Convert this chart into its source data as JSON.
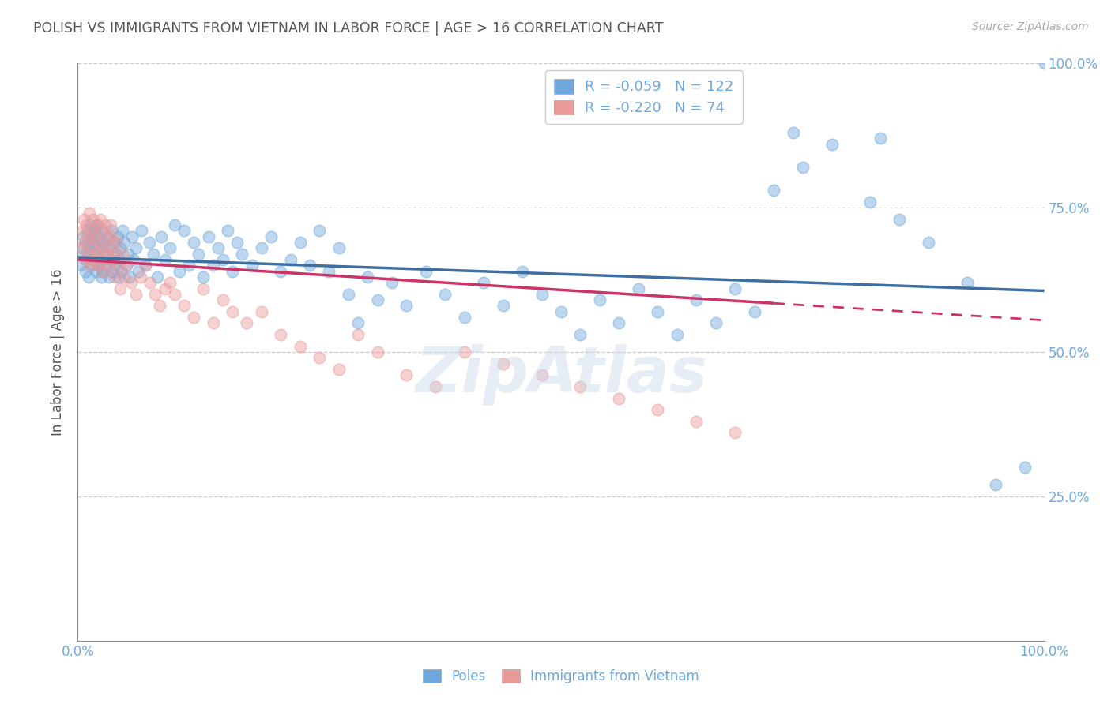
{
  "title": "POLISH VS IMMIGRANTS FROM VIETNAM IN LABOR FORCE | AGE > 16 CORRELATION CHART",
  "source": "Source: ZipAtlas.com",
  "ylabel": "In Labor Force | Age > 16",
  "legend_labels": [
    "Poles",
    "Immigrants from Vietnam"
  ],
  "legend_r": [
    -0.059,
    -0.22
  ],
  "legend_n": [
    122,
    74
  ],
  "blue_color": "#6fa8dc",
  "pink_color": "#ea9999",
  "blue_line_color": "#3d6fa3",
  "pink_line_color": "#cc3366",
  "title_color": "#555555",
  "axis_label_color": "#6fa8dc",
  "watermark": "ZipAtlas",
  "blue_scatter_x": [
    0.003,
    0.005,
    0.006,
    0.007,
    0.008,
    0.009,
    0.01,
    0.01,
    0.011,
    0.012,
    0.013,
    0.014,
    0.015,
    0.015,
    0.016,
    0.017,
    0.018,
    0.019,
    0.02,
    0.02,
    0.021,
    0.022,
    0.023,
    0.024,
    0.025,
    0.025,
    0.026,
    0.027,
    0.028,
    0.03,
    0.031,
    0.032,
    0.033,
    0.034,
    0.035,
    0.036,
    0.037,
    0.038,
    0.04,
    0.041,
    0.042,
    0.043,
    0.044,
    0.045,
    0.046,
    0.048,
    0.05,
    0.052,
    0.054,
    0.056,
    0.058,
    0.06,
    0.063,
    0.066,
    0.07,
    0.074,
    0.078,
    0.082,
    0.086,
    0.09,
    0.095,
    0.1,
    0.105,
    0.11,
    0.115,
    0.12,
    0.125,
    0.13,
    0.135,
    0.14,
    0.145,
    0.15,
    0.155,
    0.16,
    0.165,
    0.17,
    0.18,
    0.19,
    0.2,
    0.21,
    0.22,
    0.23,
    0.24,
    0.25,
    0.26,
    0.27,
    0.28,
    0.29,
    0.3,
    0.31,
    0.325,
    0.34,
    0.36,
    0.38,
    0.4,
    0.42,
    0.44,
    0.46,
    0.48,
    0.5,
    0.52,
    0.54,
    0.56,
    0.58,
    0.6,
    0.62,
    0.64,
    0.66,
    0.68,
    0.7,
    0.72,
    0.75,
    0.78,
    0.82,
    0.85,
    0.88,
    0.92,
    0.95,
    0.98,
    1.0,
    0.74,
    0.83
  ],
  "blue_scatter_y": [
    0.65,
    0.68,
    0.7,
    0.67,
    0.64,
    0.66,
    0.69,
    0.71,
    0.63,
    0.68,
    0.72,
    0.65,
    0.7,
    0.66,
    0.69,
    0.67,
    0.71,
    0.64,
    0.68,
    0.72,
    0.65,
    0.7,
    0.66,
    0.63,
    0.68,
    0.71,
    0.64,
    0.69,
    0.65,
    0.67,
    0.7,
    0.63,
    0.66,
    0.68,
    0.71,
    0.64,
    0.69,
    0.65,
    0.67,
    0.7,
    0.63,
    0.66,
    0.68,
    0.64,
    0.71,
    0.69,
    0.65,
    0.67,
    0.63,
    0.7,
    0.66,
    0.68,
    0.64,
    0.71,
    0.65,
    0.69,
    0.67,
    0.63,
    0.7,
    0.66,
    0.68,
    0.72,
    0.64,
    0.71,
    0.65,
    0.69,
    0.67,
    0.63,
    0.7,
    0.65,
    0.68,
    0.66,
    0.71,
    0.64,
    0.69,
    0.67,
    0.65,
    0.68,
    0.7,
    0.64,
    0.66,
    0.69,
    0.65,
    0.71,
    0.64,
    0.68,
    0.6,
    0.55,
    0.63,
    0.59,
    0.62,
    0.58,
    0.64,
    0.6,
    0.56,
    0.62,
    0.58,
    0.64,
    0.6,
    0.57,
    0.53,
    0.59,
    0.55,
    0.61,
    0.57,
    0.53,
    0.59,
    0.55,
    0.61,
    0.57,
    0.78,
    0.82,
    0.86,
    0.76,
    0.73,
    0.69,
    0.62,
    0.27,
    0.3,
    1.0,
    0.88,
    0.87
  ],
  "pink_scatter_x": [
    0.003,
    0.005,
    0.006,
    0.007,
    0.008,
    0.009,
    0.01,
    0.011,
    0.012,
    0.013,
    0.014,
    0.015,
    0.016,
    0.017,
    0.018,
    0.019,
    0.02,
    0.021,
    0.022,
    0.023,
    0.024,
    0.025,
    0.026,
    0.027,
    0.028,
    0.03,
    0.031,
    0.032,
    0.033,
    0.034,
    0.035,
    0.036,
    0.037,
    0.038,
    0.04,
    0.042,
    0.044,
    0.046,
    0.048,
    0.05,
    0.055,
    0.06,
    0.065,
    0.07,
    0.075,
    0.08,
    0.085,
    0.09,
    0.095,
    0.1,
    0.11,
    0.12,
    0.13,
    0.14,
    0.15,
    0.16,
    0.175,
    0.19,
    0.21,
    0.23,
    0.25,
    0.27,
    0.29,
    0.31,
    0.34,
    0.37,
    0.4,
    0.44,
    0.48,
    0.52,
    0.56,
    0.6,
    0.64,
    0.68
  ],
  "pink_scatter_y": [
    0.68,
    0.71,
    0.73,
    0.69,
    0.66,
    0.72,
    0.7,
    0.67,
    0.74,
    0.65,
    0.71,
    0.68,
    0.73,
    0.66,
    0.7,
    0.67,
    0.72,
    0.65,
    0.69,
    0.73,
    0.66,
    0.71,
    0.68,
    0.64,
    0.72,
    0.67,
    0.7,
    0.65,
    0.68,
    0.72,
    0.66,
    0.7,
    0.67,
    0.63,
    0.69,
    0.65,
    0.61,
    0.67,
    0.63,
    0.65,
    0.62,
    0.6,
    0.63,
    0.65,
    0.62,
    0.6,
    0.58,
    0.61,
    0.62,
    0.6,
    0.58,
    0.56,
    0.61,
    0.55,
    0.59,
    0.57,
    0.55,
    0.57,
    0.53,
    0.51,
    0.49,
    0.47,
    0.53,
    0.5,
    0.46,
    0.44,
    0.5,
    0.48,
    0.46,
    0.44,
    0.42,
    0.4,
    0.38,
    0.36
  ],
  "xmin": 0.0,
  "xmax": 1.0,
  "ymin": 0.0,
  "ymax": 1.0,
  "blue_line_y_start": 0.664,
  "blue_line_y_end": 0.606,
  "pink_line_y_start": 0.66,
  "pink_line_y_end": 0.555,
  "pink_line_solid_end_x": 0.72
}
